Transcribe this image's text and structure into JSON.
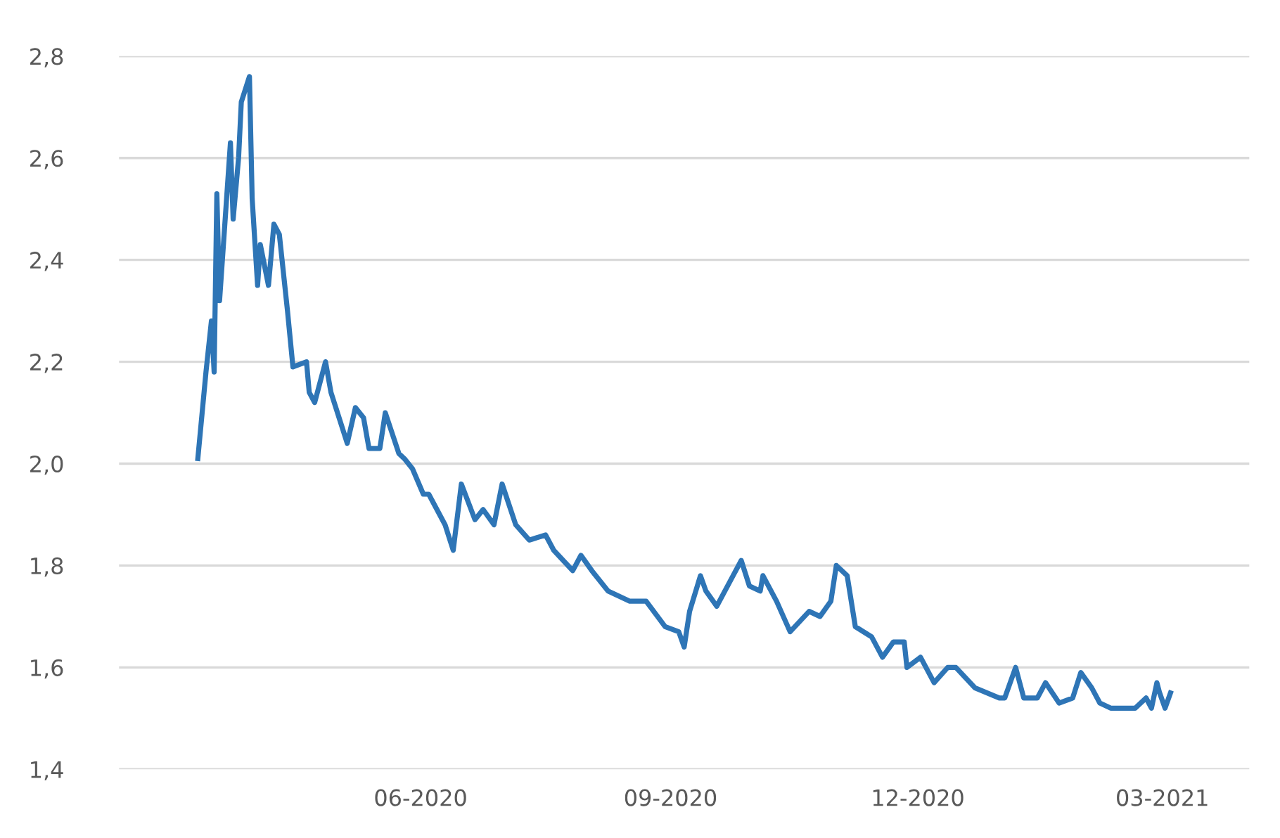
{
  "chart_data": {
    "type": "line",
    "grid": "y",
    "legend": false,
    "marker": "none",
    "line_style": "solid",
    "xlim": [
      "2020-02-11",
      "2021-04-02"
    ],
    "xticks": [
      {
        "value": "2020-06-01",
        "label": "06-2020"
      },
      {
        "value": "2020-09-01",
        "label": "09-2020"
      },
      {
        "value": "2020-12-01",
        "label": "12-2020"
      },
      {
        "value": "2021-03-01",
        "label": "03-2021"
      }
    ],
    "ylim": [
      1.4,
      2.8
    ],
    "yticks": [
      {
        "value": 1.4,
        "label": "1,4"
      },
      {
        "value": 1.6,
        "label": "1,6"
      },
      {
        "value": 1.8,
        "label": "1,8"
      },
      {
        "value": 2.0,
        "label": "2,0"
      },
      {
        "value": 2.2,
        "label": "2,2"
      },
      {
        "value": 2.4,
        "label": "2,4"
      },
      {
        "value": 2.6,
        "label": "2,6"
      },
      {
        "value": 2.8,
        "label": "2,8"
      }
    ],
    "x": [
      "2020-03-11",
      "2020-03-14",
      "2020-03-16",
      "2020-03-17",
      "2020-03-18",
      "2020-03-19",
      "2020-03-23",
      "2020-03-24",
      "2020-03-26",
      "2020-03-27",
      "2020-03-30",
      "2020-03-31",
      "2020-04-02",
      "2020-04-03",
      "2020-04-06",
      "2020-04-08",
      "2020-04-10",
      "2020-04-13",
      "2020-04-15",
      "2020-04-20",
      "2020-04-21",
      "2020-04-23",
      "2020-04-27",
      "2020-04-29",
      "2020-05-05",
      "2020-05-08",
      "2020-05-11",
      "2020-05-13",
      "2020-05-17",
      "2020-05-19",
      "2020-05-24",
      "2020-05-26",
      "2020-05-29",
      "2020-06-02",
      "2020-06-04",
      "2020-06-10",
      "2020-06-13",
      "2020-06-16",
      "2020-06-21",
      "2020-06-24",
      "2020-06-28",
      "2020-07-01",
      "2020-07-06",
      "2020-07-11",
      "2020-07-17",
      "2020-07-20",
      "2020-07-27",
      "2020-07-30",
      "2020-08-03",
      "2020-08-09",
      "2020-08-17",
      "2020-08-23",
      "2020-08-30",
      "2020-09-04",
      "2020-09-06",
      "2020-09-08",
      "2020-09-12",
      "2020-09-14",
      "2020-09-18",
      "2020-09-24",
      "2020-09-27",
      "2020-09-30",
      "2020-10-04",
      "2020-10-05",
      "2020-10-10",
      "2020-10-15",
      "2020-10-22",
      "2020-10-26",
      "2020-10-30",
      "2020-11-01",
      "2020-11-05",
      "2020-11-08",
      "2020-11-14",
      "2020-11-18",
      "2020-11-22",
      "2020-11-26",
      "2020-11-27",
      "2020-12-02",
      "2020-12-07",
      "2020-12-12",
      "2020-12-15",
      "2020-12-22",
      "2020-12-31",
      "2021-01-02",
      "2021-01-06",
      "2021-01-09",
      "2021-01-14",
      "2021-01-17",
      "2021-01-22",
      "2021-01-27",
      "2021-01-30",
      "2021-02-03",
      "2021-02-06",
      "2021-02-10",
      "2021-02-14",
      "2021-02-19",
      "2021-02-23",
      "2021-02-25",
      "2021-02-27",
      "2021-02-28",
      "2021-03-02",
      "2021-03-04"
    ],
    "series": [
      {
        "color": "#2e75b6",
        "values": [
          2.01,
          2.18,
          2.28,
          2.18,
          2.53,
          2.32,
          2.63,
          2.48,
          2.6,
          2.71,
          2.76,
          2.52,
          2.35,
          2.43,
          2.35,
          2.47,
          2.45,
          2.3,
          2.19,
          2.2,
          2.14,
          2.12,
          2.2,
          2.14,
          2.04,
          2.11,
          2.09,
          2.03,
          2.03,
          2.1,
          2.02,
          2.01,
          1.99,
          1.94,
          1.94,
          1.88,
          1.83,
          1.96,
          1.89,
          1.91,
          1.88,
          1.96,
          1.88,
          1.85,
          1.86,
          1.83,
          1.79,
          1.82,
          1.79,
          1.75,
          1.73,
          1.73,
          1.68,
          1.67,
          1.64,
          1.71,
          1.78,
          1.75,
          1.72,
          1.78,
          1.81,
          1.76,
          1.75,
          1.78,
          1.73,
          1.67,
          1.71,
          1.7,
          1.73,
          1.8,
          1.78,
          1.68,
          1.66,
          1.62,
          1.65,
          1.65,
          1.6,
          1.62,
          1.57,
          1.6,
          1.6,
          1.56,
          1.54,
          1.54,
          1.6,
          1.54,
          1.54,
          1.57,
          1.53,
          1.54,
          1.59,
          1.56,
          1.53,
          1.52,
          1.52,
          1.52,
          1.54,
          1.52,
          1.57,
          1.55,
          1.52,
          1.55
        ]
      }
    ]
  }
}
